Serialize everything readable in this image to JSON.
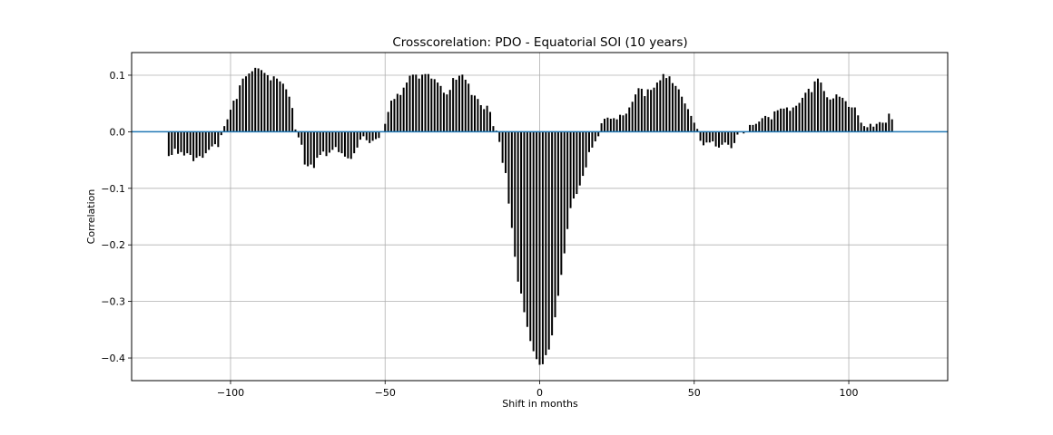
{
  "chart_data": {
    "type": "bar",
    "title": "Crosscorelation: PDO - Equatorial SOI (10 years)",
    "xlabel": "Shift in months",
    "ylabel": "Correlation",
    "xlim": [
      -132,
      132
    ],
    "ylim": [
      -0.44,
      0.14
    ],
    "xticks": [
      -100,
      -50,
      0,
      50,
      100
    ],
    "xtick_labels": [
      "−100",
      "−50",
      "0",
      "50",
      "100"
    ],
    "yticks": [
      0.1,
      0.0,
      -0.1,
      -0.2,
      -0.3,
      -0.4
    ],
    "ytick_labels": [
      "0.1",
      "0.0",
      "−0.1",
      "−0.2",
      "−0.3",
      "−0.4"
    ],
    "grid": true,
    "bar_color": "#000000",
    "zero_line_color": "#1f77b4",
    "x_start": -120,
    "x_step": 1,
    "values": [
      -0.043,
      -0.041,
      -0.03,
      -0.039,
      -0.036,
      -0.042,
      -0.038,
      -0.041,
      -0.052,
      -0.046,
      -0.043,
      -0.046,
      -0.038,
      -0.032,
      -0.026,
      -0.022,
      -0.027,
      -0.006,
      0.01,
      0.022,
      0.039,
      0.055,
      0.058,
      0.082,
      0.094,
      0.098,
      0.103,
      0.107,
      0.113,
      0.112,
      0.109,
      0.104,
      0.1,
      0.091,
      0.098,
      0.094,
      0.089,
      0.085,
      0.075,
      0.062,
      0.042,
      0.004,
      -0.01,
      -0.023,
      -0.058,
      -0.061,
      -0.058,
      -0.064,
      -0.046,
      -0.041,
      -0.035,
      -0.043,
      -0.037,
      -0.032,
      -0.027,
      -0.036,
      -0.038,
      -0.044,
      -0.047,
      -0.048,
      -0.038,
      -0.028,
      -0.014,
      -0.008,
      -0.015,
      -0.02,
      -0.016,
      -0.013,
      -0.011,
      0.0,
      0.014,
      0.035,
      0.055,
      0.058,
      0.067,
      0.065,
      0.078,
      0.087,
      0.099,
      0.101,
      0.101,
      0.094,
      0.101,
      0.102,
      0.102,
      0.094,
      0.093,
      0.087,
      0.081,
      0.069,
      0.066,
      0.074,
      0.095,
      0.092,
      0.099,
      0.101,
      0.092,
      0.085,
      0.065,
      0.064,
      0.058,
      0.047,
      0.04,
      0.046,
      0.035,
      0.01,
      0.002,
      -0.018,
      -0.055,
      -0.073,
      -0.127,
      -0.17,
      -0.221,
      -0.265,
      -0.286,
      -0.319,
      -0.345,
      -0.37,
      -0.388,
      -0.402,
      -0.412,
      -0.411,
      -0.395,
      -0.385,
      -0.36,
      -0.328,
      -0.29,
      -0.253,
      -0.215,
      -0.172,
      -0.135,
      -0.118,
      -0.11,
      -0.095,
      -0.078,
      -0.063,
      -0.036,
      -0.028,
      -0.017,
      -0.008,
      0.015,
      0.023,
      0.025,
      0.023,
      0.024,
      0.022,
      0.03,
      0.029,
      0.032,
      0.043,
      0.053,
      0.066,
      0.077,
      0.076,
      0.063,
      0.075,
      0.074,
      0.078,
      0.087,
      0.091,
      0.102,
      0.095,
      0.098,
      0.086,
      0.081,
      0.075,
      0.062,
      0.05,
      0.04,
      0.028,
      0.016,
      0.005,
      -0.016,
      -0.024,
      -0.019,
      -0.019,
      -0.017,
      -0.026,
      -0.028,
      -0.023,
      -0.019,
      -0.023,
      -0.029,
      -0.02,
      -0.005,
      -0.001,
      -0.003,
      0.0,
      0.012,
      0.012,
      0.014,
      0.018,
      0.024,
      0.028,
      0.026,
      0.022,
      0.036,
      0.038,
      0.041,
      0.041,
      0.043,
      0.037,
      0.043,
      0.046,
      0.051,
      0.06,
      0.069,
      0.076,
      0.07,
      0.089,
      0.094,
      0.087,
      0.072,
      0.061,
      0.057,
      0.059,
      0.066,
      0.062,
      0.06,
      0.054,
      0.044,
      0.043,
      0.043,
      0.029,
      0.016,
      0.01,
      0.008,
      0.014,
      0.009,
      0.014,
      0.017,
      0.016,
      0.016,
      0.032,
      0.022
    ]
  }
}
